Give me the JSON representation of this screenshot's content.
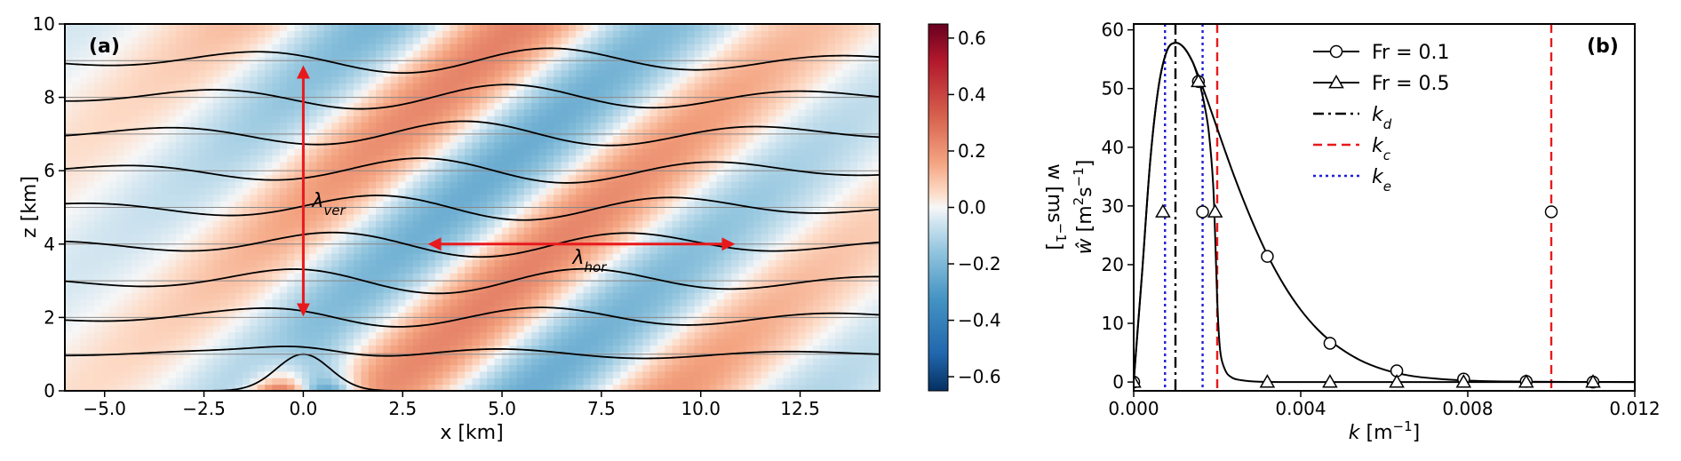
{
  "chart_data": [
    {
      "panel": "(a)",
      "type": "heatmap",
      "xlabel_main": "x",
      "xlabel_unit": "[km]",
      "ylabel_main": "z",
      "ylabel_unit": "[km]",
      "xlim": [
        -6,
        14.5
      ],
      "ylim": [
        0,
        10
      ],
      "xticks": [
        -5.0,
        -2.5,
        0.0,
        2.5,
        5.0,
        7.5,
        10.0,
        12.5
      ],
      "xtick_labels": [
        "−5.0",
        "−2.5",
        "0.0",
        "2.5",
        "5.0",
        "7.5",
        "10.0",
        "12.5"
      ],
      "yticks": [
        0,
        2,
        4,
        6,
        8,
        10
      ],
      "ytick_labels": [
        "0",
        "2",
        "4",
        "6",
        "8",
        "10"
      ],
      "colorbar": {
        "label_main": "w",
        "label_unit": "[ms",
        "label_sup": "−1",
        "label_close": "]",
        "range": [
          -0.65,
          0.65
        ],
        "ticks": [
          -0.6,
          -0.4,
          -0.2,
          0.0,
          0.2,
          0.4,
          0.6
        ],
        "tick_labels": [
          "−0.6",
          "−0.4",
          "−0.2",
          "0.0",
          "0.2",
          "0.4",
          "0.6"
        ],
        "colormap": "RdBu_r"
      },
      "streamline_levels": [
        0,
        1,
        2,
        3,
        4,
        5,
        6,
        7,
        8,
        9
      ],
      "mountain": {
        "center_x": 0,
        "height": 1.0
      },
      "wave": {
        "lambda_hor_km": 7.6,
        "lambda_ver_km": 6.8
      },
      "annotations": [
        {
          "id": "lambda_ver",
          "sym": "λ",
          "sub": "ver",
          "x": 0.0,
          "y1": 2.1,
          "y2": 8.8
        },
        {
          "id": "lambda_hor",
          "sym": "λ",
          "sub": "hor",
          "y": 4.0,
          "x1": 3.2,
          "x2": 10.8
        }
      ],
      "colors": {
        "arrow": "#e8191c",
        "streamline": "#000000"
      }
    },
    {
      "panel": "(b)",
      "type": "line",
      "xlabel_main": "k",
      "xlabel_unit": "[m",
      "xlabel_sup": "−1",
      "xlabel_close": "]",
      "ylabel_main": "ŵ",
      "ylabel_unit": "[m",
      "ylabel_sup1": "2",
      "ylabel_mid": "s",
      "ylabel_sup2": "−1",
      "ylabel_close": "]",
      "xlim": [
        0,
        0.012
      ],
      "ylim": [
        -1.5,
        61
      ],
      "xticks": [
        0.0,
        0.004,
        0.008,
        0.012
      ],
      "xtick_labels": [
        "0.000",
        "0.004",
        "0.008",
        "0.012"
      ],
      "yticks": [
        0,
        10,
        20,
        30,
        40,
        50,
        60
      ],
      "ytick_labels": [
        "0",
        "10",
        "20",
        "30",
        "40",
        "50",
        "60"
      ],
      "series": [
        {
          "name": "Fr = 0.1",
          "marker": "circle",
          "x": [
            0.0,
            0.0002,
            0.0004,
            0.0006,
            0.0008,
            0.001,
            0.0012,
            0.0014,
            0.0016,
            0.0018,
            0.002,
            0.0024,
            0.0028,
            0.0032,
            0.0036,
            0.004,
            0.0044,
            0.0048,
            0.0054,
            0.006,
            0.0066,
            0.0072,
            0.008,
            0.009,
            0.01,
            0.011,
            0.012
          ],
          "y": [
            0.0,
            18.5,
            38.0,
            50.5,
            56.5,
            57.8,
            57.0,
            54.7,
            51.2,
            47.3,
            43.2,
            35.2,
            28.0,
            21.7,
            16.5,
            12.3,
            9.0,
            6.5,
            3.8,
            2.1,
            1.1,
            0.6,
            0.25,
            0.08,
            0.03,
            0.01,
            0.0
          ],
          "markers_x": [
            0.0,
            0.00155,
            0.0032,
            0.0047,
            0.0063,
            0.0079,
            0.0094,
            0.011
          ],
          "markers_y": [
            0.0,
            51.2,
            21.4,
            6.6,
            1.9,
            0.5,
            0.1,
            0.0
          ]
        },
        {
          "name": "Fr = 0.5",
          "marker": "triangle",
          "x": [
            0.0,
            0.0001,
            0.0002,
            0.0004,
            0.0006,
            0.0008,
            0.001,
            0.0012,
            0.0014,
            0.0015,
            0.00155,
            0.0016,
            0.0017,
            0.0018,
            0.0019,
            0.00195,
            0.002,
            0.00205,
            0.0021,
            0.0022,
            0.0023,
            0.0025,
            0.003,
            0.004,
            0.008,
            0.012
          ],
          "y": [
            0.0,
            9.5,
            18.5,
            38.0,
            50.5,
            56.5,
            57.8,
            57.0,
            54.7,
            52.8,
            51.6,
            50.3,
            47.0,
            42.5,
            34.0,
            25.0,
            14.0,
            7.0,
            4.0,
            1.9,
            1.0,
            0.4,
            0.05,
            0.0,
            0.0,
            0.0
          ],
          "markers_x": [
            0.0,
            0.00155,
            0.0032,
            0.0047,
            0.0063,
            0.0079,
            0.0094,
            0.011
          ],
          "markers_y": [
            0.0,
            51.2,
            0.0,
            0.0,
            0.0,
            0.0,
            0.0,
            0.0
          ]
        }
      ],
      "isolated_markers": [
        {
          "marker": "triangle",
          "x": 0.0007,
          "y": 29.0
        },
        {
          "marker": "circle",
          "x": 0.00165,
          "y": 29.0
        },
        {
          "marker": "triangle",
          "x": 0.00195,
          "y": 29.0
        },
        {
          "marker": "circle",
          "x": 0.01,
          "y": 29.0
        }
      ],
      "vlines": [
        {
          "name_sym": "k",
          "name_sub": "d",
          "style": "dashdot",
          "color": "#000000",
          "x": [
            0.001
          ]
        },
        {
          "name_sym": "k",
          "name_sub": "c",
          "style": "dashed",
          "color": "#e8191c",
          "x": [
            0.002,
            0.01
          ]
        },
        {
          "name_sym": "k",
          "name_sub": "e",
          "style": "dotted",
          "color": "#1f1fd6",
          "x": [
            0.00075,
            0.00165
          ]
        }
      ],
      "legend": "top-center"
    }
  ]
}
